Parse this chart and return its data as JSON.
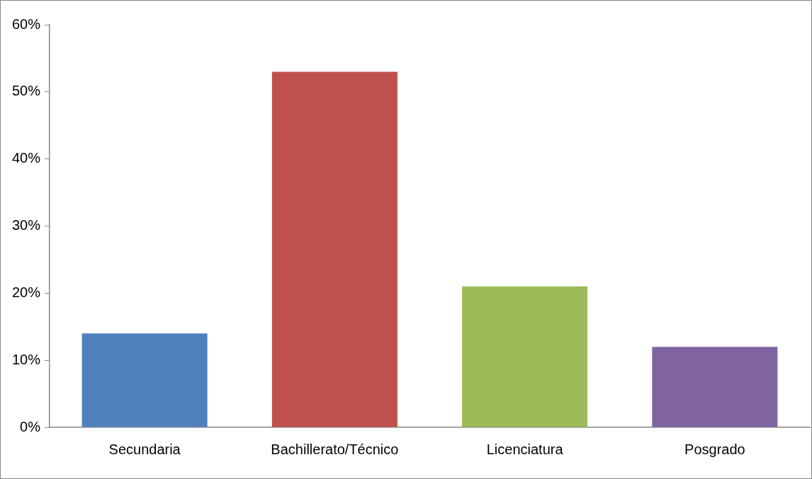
{
  "chart_data": {
    "type": "bar",
    "categories": [
      "Secundaria",
      "Bachillerato/Técnico",
      "Licenciatura",
      "Posgrado"
    ],
    "values": [
      14,
      53,
      21,
      12
    ],
    "colors": [
      "#4f81bd",
      "#c0504d",
      "#9bbb59",
      "#8064a2"
    ],
    "ylim": [
      0,
      60
    ],
    "yticks": [
      {
        "value": 0,
        "label": "0%"
      },
      {
        "value": 10,
        "label": "10%"
      },
      {
        "value": 20,
        "label": "20%"
      },
      {
        "value": 30,
        "label": "30%"
      },
      {
        "value": 40,
        "label": "40%"
      },
      {
        "value": 50,
        "label": "50%"
      },
      {
        "value": 60,
        "label": "60%"
      }
    ],
    "grid": false,
    "legend": false
  }
}
